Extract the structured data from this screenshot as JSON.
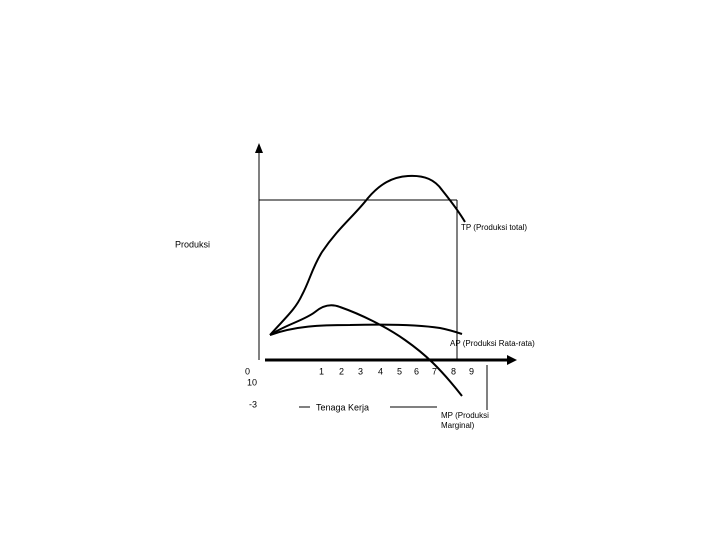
{
  "labels": {
    "tp": "TP (Produksi total)",
    "y_axis": "Produksi",
    "ap": "AP (Produksi Rata-rata)",
    "origin": "0",
    "ten": "10",
    "minus_three": "-3",
    "x_axis": "Tenaga Kerja",
    "mp": [
      "MP (Produksi",
      "Marginal)"
    ],
    "x_ticks": [
      "1",
      "2",
      "3",
      "4",
      "5",
      "6",
      "7",
      "8",
      "9"
    ]
  }
}
